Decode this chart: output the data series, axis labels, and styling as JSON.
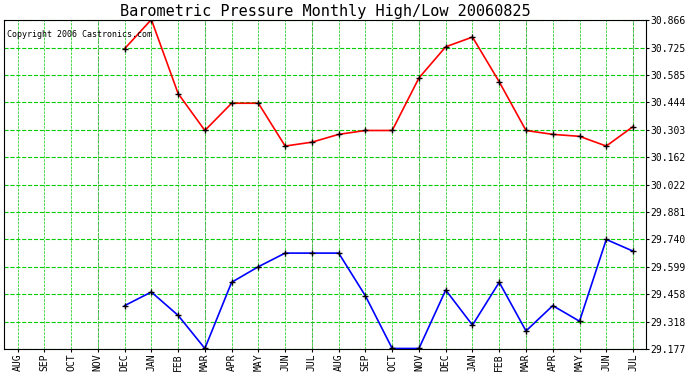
{
  "title": "Barometric Pressure Monthly High/Low 20060825",
  "copyright_text": "Copyright 2006 Castronics.com",
  "x_labels": [
    "AUG",
    "SEP",
    "OCT",
    "NOV",
    "DEC",
    "JAN",
    "FEB",
    "MAR",
    "APR",
    "MAY",
    "JUN",
    "JUL",
    "AUG",
    "SEP",
    "OCT",
    "NOV",
    "DEC",
    "JAN",
    "FEB",
    "MAR",
    "APR",
    "MAY",
    "JUN",
    "JUL"
  ],
  "high_values": [
    null,
    null,
    null,
    null,
    30.72,
    30.87,
    30.49,
    30.3,
    30.44,
    30.44,
    30.22,
    30.24,
    30.28,
    30.3,
    30.3,
    30.57,
    30.73,
    30.78,
    30.55,
    30.3,
    30.28,
    30.27,
    30.22,
    30.32
  ],
  "low_values": [
    null,
    null,
    null,
    null,
    29.4,
    29.47,
    29.35,
    29.18,
    29.52,
    29.6,
    29.67,
    29.67,
    29.67,
    29.45,
    29.18,
    29.18,
    29.48,
    29.3,
    29.52,
    29.27,
    29.4,
    29.32,
    29.74,
    29.68
  ],
  "high_color": "#ff0000",
  "low_color": "#0000ff",
  "grid_h_color": "#00cc00",
  "grid_v_color": "#aaaaaa",
  "bg_color": "#ffffff",
  "yticks": [
    29.177,
    29.318,
    29.458,
    29.599,
    29.74,
    29.881,
    30.022,
    30.162,
    30.303,
    30.444,
    30.585,
    30.725,
    30.866
  ],
  "ymin": 29.177,
  "ymax": 30.866,
  "marker": "+",
  "marker_color": "#000000",
  "marker_size": 5,
  "title_fontsize": 11,
  "copyright_fontsize": 6,
  "tick_fontsize": 7,
  "line_width": 1.2,
  "gray_vlines": [
    3,
    7,
    11,
    15,
    19,
    23
  ]
}
